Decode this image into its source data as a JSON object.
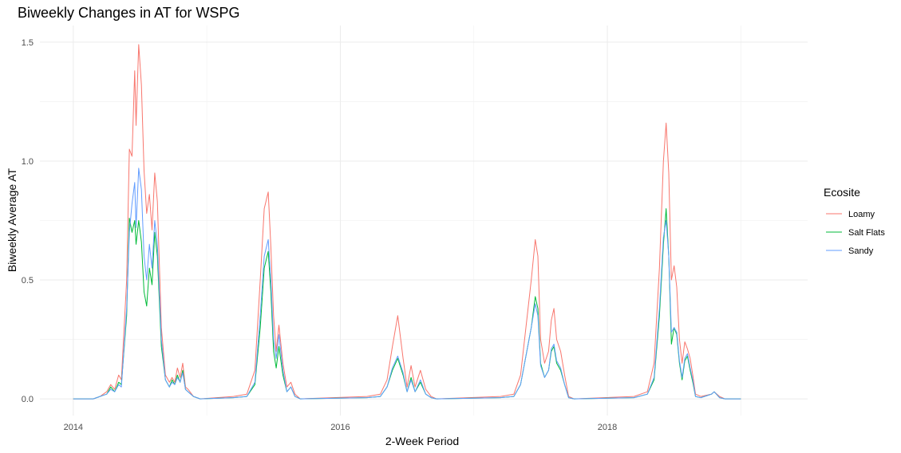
{
  "chart_data": {
    "type": "line",
    "title": "Biweekly Changes in AT for WSPG",
    "xlabel": "2-Week Period",
    "ylabel": "Biweekly Average AT",
    "xlim": [
      2013.75,
      2019.5
    ],
    "ylim": [
      -0.07,
      1.57
    ],
    "x_ticks": [
      2014,
      2016,
      2018
    ],
    "x_tick_labels": [
      "2014",
      "2016",
      "2018"
    ],
    "x_minor_ticks": [
      2015,
      2017,
      2019
    ],
    "y_ticks": [
      0,
      0.5,
      1,
      1.5
    ],
    "y_tick_labels": [
      "0.0",
      "0.5",
      "1.0",
      "1.5"
    ],
    "grid": true,
    "legend": {
      "title": "Ecosite",
      "position": "right"
    },
    "series": [
      {
        "name": "Loamy",
        "color": "#F8766D",
        "points": [
          [
            2014.0,
            0
          ],
          [
            2014.15,
            0
          ],
          [
            2014.2,
            0.01
          ],
          [
            2014.25,
            0.03
          ],
          [
            2014.28,
            0.06
          ],
          [
            2014.31,
            0.04
          ],
          [
            2014.34,
            0.1
          ],
          [
            2014.36,
            0.08
          ],
          [
            2014.4,
            0.5
          ],
          [
            2014.42,
            1.05
          ],
          [
            2014.44,
            1.02
          ],
          [
            2014.46,
            1.38
          ],
          [
            2014.47,
            1.15
          ],
          [
            2014.49,
            1.49
          ],
          [
            2014.51,
            1.32
          ],
          [
            2014.53,
            0.96
          ],
          [
            2014.55,
            0.78
          ],
          [
            2014.57,
            0.86
          ],
          [
            2014.59,
            0.71
          ],
          [
            2014.61,
            0.95
          ],
          [
            2014.63,
            0.83
          ],
          [
            2014.66,
            0.3
          ],
          [
            2014.69,
            0.1
          ],
          [
            2014.72,
            0.07
          ],
          [
            2014.74,
            0.09
          ],
          [
            2014.76,
            0.07
          ],
          [
            2014.78,
            0.13
          ],
          [
            2014.8,
            0.09
          ],
          [
            2014.82,
            0.15
          ],
          [
            2014.84,
            0.05
          ],
          [
            2014.86,
            0.04
          ],
          [
            2014.9,
            0.01
          ],
          [
            2014.95,
            0
          ],
          [
            2015.2,
            0.01
          ],
          [
            2015.3,
            0.02
          ],
          [
            2015.36,
            0.12
          ],
          [
            2015.4,
            0.5
          ],
          [
            2015.43,
            0.8
          ],
          [
            2015.46,
            0.87
          ],
          [
            2015.48,
            0.64
          ],
          [
            2015.5,
            0.35
          ],
          [
            2015.52,
            0.2
          ],
          [
            2015.54,
            0.31
          ],
          [
            2015.57,
            0.15
          ],
          [
            2015.6,
            0.05
          ],
          [
            2015.63,
            0.07
          ],
          [
            2015.66,
            0.02
          ],
          [
            2015.7,
            0
          ],
          [
            2016.2,
            0.01
          ],
          [
            2016.3,
            0.02
          ],
          [
            2016.35,
            0.08
          ],
          [
            2016.39,
            0.22
          ],
          [
            2016.43,
            0.35
          ],
          [
            2016.47,
            0.17
          ],
          [
            2016.5,
            0.05
          ],
          [
            2016.53,
            0.14
          ],
          [
            2016.56,
            0.05
          ],
          [
            2016.6,
            0.12
          ],
          [
            2016.64,
            0.04
          ],
          [
            2016.68,
            0.01
          ],
          [
            2016.72,
            0
          ],
          [
            2017.2,
            0.01
          ],
          [
            2017.3,
            0.02
          ],
          [
            2017.35,
            0.1
          ],
          [
            2017.39,
            0.3
          ],
          [
            2017.43,
            0.5
          ],
          [
            2017.46,
            0.67
          ],
          [
            2017.48,
            0.6
          ],
          [
            2017.5,
            0.25
          ],
          [
            2017.53,
            0.15
          ],
          [
            2017.56,
            0.2
          ],
          [
            2017.58,
            0.33
          ],
          [
            2017.6,
            0.38
          ],
          [
            2017.62,
            0.25
          ],
          [
            2017.65,
            0.2
          ],
          [
            2017.68,
            0.1
          ],
          [
            2017.71,
            0.01
          ],
          [
            2017.75,
            0
          ],
          [
            2018.2,
            0.01
          ],
          [
            2018.3,
            0.03
          ],
          [
            2018.35,
            0.15
          ],
          [
            2018.39,
            0.55
          ],
          [
            2018.42,
            1.0
          ],
          [
            2018.44,
            1.16
          ],
          [
            2018.46,
            0.95
          ],
          [
            2018.48,
            0.5
          ],
          [
            2018.5,
            0.56
          ],
          [
            2018.52,
            0.47
          ],
          [
            2018.54,
            0.25
          ],
          [
            2018.56,
            0.15
          ],
          [
            2018.58,
            0.24
          ],
          [
            2018.6,
            0.21
          ],
          [
            2018.62,
            0.17
          ],
          [
            2018.64,
            0.1
          ],
          [
            2018.66,
            0.02
          ],
          [
            2018.7,
            0.01
          ],
          [
            2018.78,
            0.02
          ],
          [
            2018.8,
            0.03
          ],
          [
            2018.84,
            0.01
          ],
          [
            2018.88,
            0
          ],
          [
            2019.0,
            0
          ]
        ]
      },
      {
        "name": "Salt Flats",
        "color": "#00BA38",
        "points": [
          [
            2014.0,
            0
          ],
          [
            2014.15,
            0
          ],
          [
            2014.2,
            0.01
          ],
          [
            2014.25,
            0.02
          ],
          [
            2014.28,
            0.05
          ],
          [
            2014.31,
            0.03
          ],
          [
            2014.34,
            0.07
          ],
          [
            2014.36,
            0.06
          ],
          [
            2014.4,
            0.35
          ],
          [
            2014.42,
            0.76
          ],
          [
            2014.44,
            0.7
          ],
          [
            2014.46,
            0.75
          ],
          [
            2014.47,
            0.65
          ],
          [
            2014.49,
            0.75
          ],
          [
            2014.51,
            0.66
          ],
          [
            2014.53,
            0.45
          ],
          [
            2014.55,
            0.39
          ],
          [
            2014.57,
            0.55
          ],
          [
            2014.59,
            0.48
          ],
          [
            2014.61,
            0.7
          ],
          [
            2014.63,
            0.6
          ],
          [
            2014.66,
            0.22
          ],
          [
            2014.69,
            0.08
          ],
          [
            2014.72,
            0.05
          ],
          [
            2014.74,
            0.08
          ],
          [
            2014.76,
            0.06
          ],
          [
            2014.78,
            0.1
          ],
          [
            2014.8,
            0.07
          ],
          [
            2014.82,
            0.12
          ],
          [
            2014.84,
            0.04
          ],
          [
            2014.86,
            0.03
          ],
          [
            2014.9,
            0.01
          ],
          [
            2014.95,
            0
          ],
          [
            2015.2,
            0.005
          ],
          [
            2015.3,
            0.01
          ],
          [
            2015.36,
            0.06
          ],
          [
            2015.4,
            0.3
          ],
          [
            2015.43,
            0.55
          ],
          [
            2015.46,
            0.62
          ],
          [
            2015.48,
            0.45
          ],
          [
            2015.5,
            0.2
          ],
          [
            2015.52,
            0.13
          ],
          [
            2015.54,
            0.22
          ],
          [
            2015.57,
            0.1
          ],
          [
            2015.6,
            0.03
          ],
          [
            2015.63,
            0.05
          ],
          [
            2015.66,
            0.01
          ],
          [
            2015.7,
            0
          ],
          [
            2016.2,
            0.005
          ],
          [
            2016.3,
            0.01
          ],
          [
            2016.35,
            0.05
          ],
          [
            2016.39,
            0.12
          ],
          [
            2016.43,
            0.17
          ],
          [
            2016.47,
            0.1
          ],
          [
            2016.5,
            0.03
          ],
          [
            2016.53,
            0.09
          ],
          [
            2016.56,
            0.03
          ],
          [
            2016.6,
            0.07
          ],
          [
            2016.64,
            0.02
          ],
          [
            2016.68,
            0.005
          ],
          [
            2016.72,
            0
          ],
          [
            2017.2,
            0.005
          ],
          [
            2017.3,
            0.01
          ],
          [
            2017.35,
            0.06
          ],
          [
            2017.39,
            0.18
          ],
          [
            2017.43,
            0.3
          ],
          [
            2017.46,
            0.43
          ],
          [
            2017.48,
            0.38
          ],
          [
            2017.5,
            0.15
          ],
          [
            2017.53,
            0.09
          ],
          [
            2017.56,
            0.12
          ],
          [
            2017.58,
            0.2
          ],
          [
            2017.6,
            0.22
          ],
          [
            2017.62,
            0.15
          ],
          [
            2017.65,
            0.12
          ],
          [
            2017.68,
            0.06
          ],
          [
            2017.71,
            0.005
          ],
          [
            2017.75,
            0
          ],
          [
            2018.2,
            0.005
          ],
          [
            2018.3,
            0.02
          ],
          [
            2018.35,
            0.08
          ],
          [
            2018.39,
            0.35
          ],
          [
            2018.42,
            0.65
          ],
          [
            2018.44,
            0.8
          ],
          [
            2018.46,
            0.6
          ],
          [
            2018.48,
            0.23
          ],
          [
            2018.5,
            0.3
          ],
          [
            2018.52,
            0.27
          ],
          [
            2018.54,
            0.15
          ],
          [
            2018.56,
            0.08
          ],
          [
            2018.58,
            0.16
          ],
          [
            2018.6,
            0.18
          ],
          [
            2018.62,
            0.12
          ],
          [
            2018.64,
            0.07
          ],
          [
            2018.66,
            0.01
          ],
          [
            2018.7,
            0.005
          ],
          [
            2018.78,
            0.02
          ],
          [
            2018.8,
            0.03
          ],
          [
            2018.84,
            0.005
          ],
          [
            2018.88,
            0
          ],
          [
            2019.0,
            0
          ]
        ]
      },
      {
        "name": "Sandy",
        "color": "#619CFF",
        "points": [
          [
            2014.0,
            0
          ],
          [
            2014.15,
            0
          ],
          [
            2014.2,
            0.01
          ],
          [
            2014.25,
            0.02
          ],
          [
            2014.28,
            0.04
          ],
          [
            2014.31,
            0.03
          ],
          [
            2014.34,
            0.06
          ],
          [
            2014.36,
            0.05
          ],
          [
            2014.4,
            0.38
          ],
          [
            2014.42,
            0.7
          ],
          [
            2014.44,
            0.82
          ],
          [
            2014.46,
            0.91
          ],
          [
            2014.47,
            0.72
          ],
          [
            2014.49,
            0.97
          ],
          [
            2014.51,
            0.88
          ],
          [
            2014.53,
            0.6
          ],
          [
            2014.55,
            0.5
          ],
          [
            2014.57,
            0.65
          ],
          [
            2014.59,
            0.55
          ],
          [
            2014.61,
            0.75
          ],
          [
            2014.63,
            0.65
          ],
          [
            2014.66,
            0.25
          ],
          [
            2014.69,
            0.08
          ],
          [
            2014.72,
            0.05
          ],
          [
            2014.74,
            0.07
          ],
          [
            2014.76,
            0.06
          ],
          [
            2014.78,
            0.09
          ],
          [
            2014.8,
            0.07
          ],
          [
            2014.82,
            0.11
          ],
          [
            2014.84,
            0.04
          ],
          [
            2014.86,
            0.03
          ],
          [
            2014.9,
            0.01
          ],
          [
            2014.95,
            0
          ],
          [
            2015.2,
            0.005
          ],
          [
            2015.3,
            0.01
          ],
          [
            2015.36,
            0.07
          ],
          [
            2015.4,
            0.35
          ],
          [
            2015.43,
            0.6
          ],
          [
            2015.46,
            0.67
          ],
          [
            2015.48,
            0.5
          ],
          [
            2015.5,
            0.25
          ],
          [
            2015.52,
            0.17
          ],
          [
            2015.54,
            0.27
          ],
          [
            2015.57,
            0.12
          ],
          [
            2015.6,
            0.03
          ],
          [
            2015.63,
            0.05
          ],
          [
            2015.66,
            0.01
          ],
          [
            2015.7,
            0
          ],
          [
            2016.2,
            0.005
          ],
          [
            2016.3,
            0.01
          ],
          [
            2016.35,
            0.05
          ],
          [
            2016.39,
            0.13
          ],
          [
            2016.43,
            0.18
          ],
          [
            2016.47,
            0.11
          ],
          [
            2016.5,
            0.03
          ],
          [
            2016.53,
            0.08
          ],
          [
            2016.56,
            0.03
          ],
          [
            2016.6,
            0.08
          ],
          [
            2016.64,
            0.02
          ],
          [
            2016.68,
            0.005
          ],
          [
            2016.72,
            0
          ],
          [
            2017.2,
            0.005
          ],
          [
            2017.3,
            0.01
          ],
          [
            2017.35,
            0.06
          ],
          [
            2017.39,
            0.18
          ],
          [
            2017.43,
            0.3
          ],
          [
            2017.46,
            0.4
          ],
          [
            2017.48,
            0.35
          ],
          [
            2017.5,
            0.14
          ],
          [
            2017.53,
            0.09
          ],
          [
            2017.56,
            0.12
          ],
          [
            2017.58,
            0.21
          ],
          [
            2017.6,
            0.23
          ],
          [
            2017.62,
            0.16
          ],
          [
            2017.65,
            0.13
          ],
          [
            2017.68,
            0.06
          ],
          [
            2017.71,
            0.005
          ],
          [
            2017.75,
            0
          ],
          [
            2018.2,
            0.005
          ],
          [
            2018.3,
            0.02
          ],
          [
            2018.35,
            0.09
          ],
          [
            2018.39,
            0.38
          ],
          [
            2018.42,
            0.68
          ],
          [
            2018.44,
            0.75
          ],
          [
            2018.46,
            0.6
          ],
          [
            2018.48,
            0.28
          ],
          [
            2018.5,
            0.3
          ],
          [
            2018.52,
            0.28
          ],
          [
            2018.54,
            0.16
          ],
          [
            2018.56,
            0.09
          ],
          [
            2018.58,
            0.17
          ],
          [
            2018.6,
            0.19
          ],
          [
            2018.62,
            0.13
          ],
          [
            2018.64,
            0.08
          ],
          [
            2018.66,
            0.01
          ],
          [
            2018.7,
            0.005
          ],
          [
            2018.78,
            0.02
          ],
          [
            2018.8,
            0.03
          ],
          [
            2018.84,
            0.005
          ],
          [
            2018.88,
            0
          ],
          [
            2019.0,
            0
          ]
        ]
      }
    ]
  }
}
